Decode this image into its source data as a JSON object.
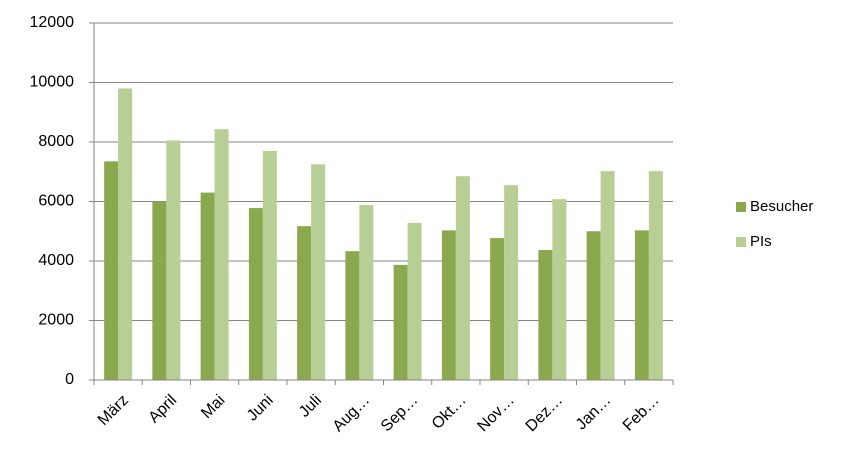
{
  "chart_data": {
    "type": "bar",
    "categories": [
      "März",
      "April",
      "Mai",
      "Juni",
      "Juli",
      "Aug…",
      "Sep…",
      "Okt…",
      "Nov…",
      "Dez…",
      "Jan…",
      "Feb…"
    ],
    "series": [
      {
        "name": "Besucher",
        "color": "#8aa94f",
        "values": [
          7350,
          6000,
          6300,
          5780,
          5170,
          4330,
          3870,
          5030,
          4770,
          4370,
          5000,
          5030
        ]
      },
      {
        "name": "PIs",
        "color": "#b7cf95",
        "values": [
          9800,
          8050,
          8430,
          7700,
          7250,
          5880,
          5280,
          6850,
          6550,
          6080,
          7020,
          7020
        ]
      }
    ],
    "ylim": [
      0,
      12000
    ],
    "yticks": [
      0,
      2000,
      4000,
      6000,
      8000,
      10000,
      12000
    ],
    "grid": true,
    "legend": "right"
  }
}
